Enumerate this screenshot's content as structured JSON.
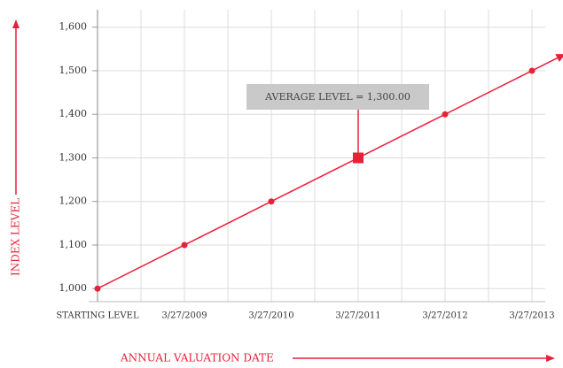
{
  "chart_data": {
    "type": "line",
    "categories": [
      "STARTING LEVEL",
      "3/27/2009",
      "3/27/2010",
      "3/27/2011",
      "3/27/2012",
      "3/27/2013"
    ],
    "values": [
      1000,
      1100,
      1200,
      1300,
      1400,
      1500
    ],
    "color": "#e8213a",
    "y_label": "INDEX LEVEL",
    "x_label": "ANNUAL VALUATION DATE",
    "ylim": [
      970,
      1640
    ],
    "yticks": [
      {
        "value": 1000,
        "label": "1,000"
      },
      {
        "value": 1100,
        "label": "1,100"
      },
      {
        "value": 1200,
        "label": "1,200"
      },
      {
        "value": 1300,
        "label": "1,300"
      },
      {
        "value": 1400,
        "label": "1,400"
      },
      {
        "value": 1500,
        "label": "1,500"
      },
      {
        "value": 1600,
        "label": "1,600"
      }
    ],
    "grid": true,
    "annotation": {
      "text": "AVERAGE LEVEL = 1,300.00",
      "x": "3/27/2011",
      "y": 1300
    }
  }
}
